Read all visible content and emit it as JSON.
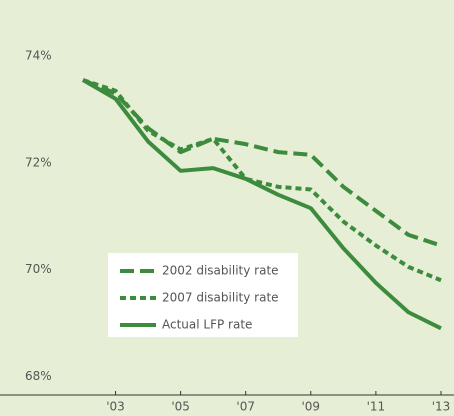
{
  "chart_data": {
    "type": "line",
    "x": [
      2002,
      2003,
      2004,
      2005,
      2006,
      2007,
      2008,
      2009,
      2010,
      2011,
      2012,
      2013
    ],
    "series": [
      {
        "name": "2002 disability rate",
        "color": "#3d8b3d",
        "dash": "dashed",
        "values": [
          73.7,
          73.45,
          72.8,
          72.35,
          72.6,
          72.5,
          72.35,
          72.3,
          71.7,
          71.25,
          70.8,
          70.6
        ]
      },
      {
        "name": "2007 disability rate",
        "color": "#3d8b3d",
        "dash": "dotted",
        "values": [
          73.7,
          73.5,
          72.75,
          72.4,
          72.6,
          71.85,
          71.7,
          71.65,
          71.05,
          70.6,
          70.2,
          69.95
        ]
      },
      {
        "name": "Actual LFP rate",
        "color": "#3d8b3d",
        "dash": "solid",
        "values": [
          73.7,
          73.35,
          72.55,
          72.0,
          72.05,
          71.85,
          71.55,
          71.3,
          70.55,
          69.9,
          69.35,
          69.05
        ]
      }
    ],
    "xlim": [
      1999.45,
      2013.4
    ],
    "xticks": [
      {
        "value": 2003,
        "label": "'03"
      },
      {
        "value": 2005,
        "label": "'05"
      },
      {
        "value": 2007,
        "label": "'07"
      },
      {
        "value": 2009,
        "label": "'09"
      },
      {
        "value": 2011,
        "label": "'11"
      },
      {
        "value": 2013,
        "label": "'13"
      }
    ],
    "ylim": [
      67.8,
      75.2
    ],
    "yticks": [
      {
        "value": 68,
        "label": "68%"
      },
      {
        "value": 70,
        "label": "70%"
      },
      {
        "value": 72,
        "label": "72%"
      },
      {
        "value": 74,
        "label": "74%"
      }
    ],
    "legend": "lower-left"
  }
}
